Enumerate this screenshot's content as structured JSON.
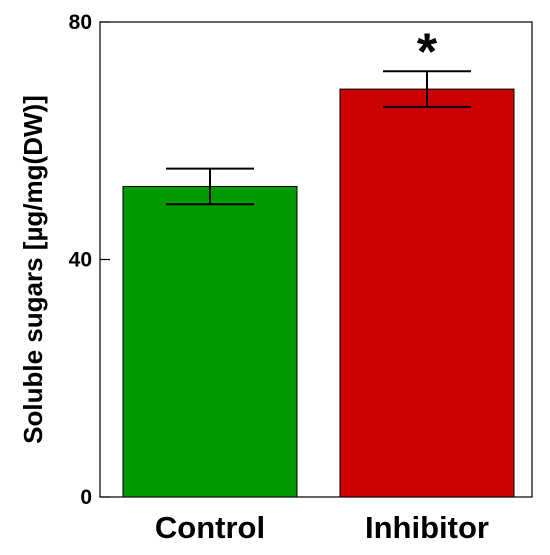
{
  "chart_data": {
    "type": "bar",
    "categories": [
      "Control",
      "Inhibitor"
    ],
    "values": [
      52.3,
      68.7
    ],
    "error": [
      3.0,
      3.0
    ],
    "colors": [
      "#009900",
      "#cc0000"
    ],
    "title": "",
    "xlabel": "",
    "ylabel": "Soluble sugars [µg/mg(DW)]",
    "ylim": [
      0,
      80
    ],
    "yticks": [
      0,
      40,
      80
    ],
    "ytick_labels": [
      "0",
      "40",
      "80"
    ],
    "annotations": [
      "",
      "*"
    ],
    "grid": false,
    "legend": "none"
  }
}
